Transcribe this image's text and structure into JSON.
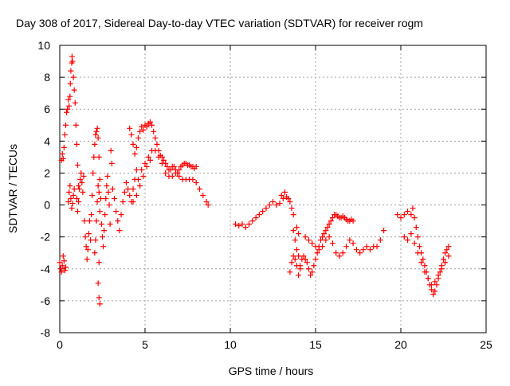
{
  "chart_data": {
    "type": "scatter",
    "title": "Day 308 of 2017, Sidereal Day-to-day VTEC variation (SDTVAR) for receiver rogm",
    "xlabel": "GPS time / hours",
    "ylabel": "SDTVAR / TECUs",
    "xlim": [
      0,
      25
    ],
    "ylim": [
      -8,
      10
    ],
    "xticks": [
      0,
      5,
      10,
      15,
      20,
      25
    ],
    "yticks": [
      -8,
      -6,
      -4,
      -2,
      0,
      2,
      4,
      6,
      8,
      10
    ],
    "grid": true,
    "marker": "+",
    "series": [
      {
        "color": "#ff0000",
        "points": [
          [
            0.0,
            -3.6
          ],
          [
            0.05,
            -4.0
          ],
          [
            0.1,
            -4.2
          ],
          [
            0.15,
            -3.8
          ],
          [
            0.2,
            -3.2
          ],
          [
            0.25,
            -3.5
          ],
          [
            0.3,
            -4.1
          ],
          [
            0.35,
            -3.9
          ],
          [
            0.1,
            2.8
          ],
          [
            0.15,
            3.2
          ],
          [
            0.2,
            2.9
          ],
          [
            0.25,
            3.6
          ],
          [
            0.3,
            4.4
          ],
          [
            0.35,
            5.0
          ],
          [
            0.4,
            5.8
          ],
          [
            0.45,
            6.0
          ],
          [
            0.5,
            6.6
          ],
          [
            0.55,
            6.2
          ],
          [
            0.6,
            6.8
          ],
          [
            0.62,
            7.6
          ],
          [
            0.65,
            8.4
          ],
          [
            0.7,
            8.9
          ],
          [
            0.72,
            9.3
          ],
          [
            0.75,
            9.0
          ],
          [
            0.8,
            8.0
          ],
          [
            0.85,
            7.2
          ],
          [
            0.9,
            6.4
          ],
          [
            0.95,
            5.0
          ],
          [
            1.0,
            3.8
          ],
          [
            1.05,
            2.5
          ],
          [
            1.1,
            1.2
          ],
          [
            0.5,
            0.2
          ],
          [
            0.55,
            0.8
          ],
          [
            0.6,
            1.2
          ],
          [
            0.65,
            0.4
          ],
          [
            0.7,
            -0.2
          ],
          [
            0.75,
            0.1
          ],
          [
            0.8,
            0.6
          ],
          [
            0.85,
            1.0
          ],
          [
            1.0,
            0.4
          ],
          [
            1.05,
            -0.4
          ],
          [
            1.1,
            0.2
          ],
          [
            1.15,
            1.0
          ],
          [
            1.2,
            1.6
          ],
          [
            1.25,
            2.0
          ],
          [
            1.3,
            1.4
          ],
          [
            1.35,
            0.8
          ],
          [
            1.4,
            1.8
          ],
          [
            1.45,
            -1.0
          ],
          [
            1.5,
            -2.0
          ],
          [
            1.55,
            -2.6
          ],
          [
            1.6,
            -3.4
          ],
          [
            1.65,
            -2.8
          ],
          [
            1.7,
            -1.8
          ],
          [
            1.75,
            -1.0
          ],
          [
            1.8,
            -2.2
          ],
          [
            1.85,
            -0.6
          ],
          [
            1.9,
            0.6
          ],
          [
            1.95,
            2.0
          ],
          [
            2.0,
            3.0
          ],
          [
            2.05,
            3.8
          ],
          [
            2.1,
            4.4
          ],
          [
            2.15,
            4.6
          ],
          [
            2.2,
            4.8
          ],
          [
            2.25,
            4.2
          ],
          [
            2.3,
            3.0
          ],
          [
            2.35,
            1.6
          ],
          [
            2.4,
            0.4
          ],
          [
            2.45,
            -1.2
          ],
          [
            2.5,
            -2.0
          ],
          [
            2.05,
            -3.0
          ],
          [
            2.1,
            -2.2
          ],
          [
            2.15,
            -1.0
          ],
          [
            2.2,
            0.2
          ],
          [
            2.25,
            1.2
          ],
          [
            2.3,
            0.8
          ],
          [
            2.35,
            -0.4
          ],
          [
            2.25,
            -4.9
          ],
          [
            2.3,
            -5.8
          ],
          [
            2.35,
            -6.2
          ],
          [
            2.3,
            -3.6
          ],
          [
            2.55,
            -2.6
          ],
          [
            2.6,
            -1.6
          ],
          [
            2.65,
            -0.6
          ],
          [
            2.7,
            0.4
          ],
          [
            2.75,
            1.2
          ],
          [
            2.8,
            1.8
          ],
          [
            2.85,
            0.8
          ],
          [
            2.9,
            0.0
          ],
          [
            2.95,
            -1.2
          ],
          [
            3.0,
            3.4
          ],
          [
            3.05,
            2.6
          ],
          [
            3.1,
            1.0
          ],
          [
            3.2,
            0.4
          ],
          [
            3.3,
            -0.4
          ],
          [
            3.4,
            -1.0
          ],
          [
            3.5,
            -1.6
          ],
          [
            3.6,
            -0.6
          ],
          [
            3.7,
            0.2
          ],
          [
            3.8,
            0.8
          ],
          [
            3.9,
            1.4
          ],
          [
            4.0,
            1.0
          ],
          [
            4.1,
            0.6
          ],
          [
            4.2,
            0.2
          ],
          [
            4.3,
            1.0
          ],
          [
            4.4,
            1.6
          ],
          [
            4.5,
            2.2
          ],
          [
            4.1,
            4.8
          ],
          [
            4.2,
            4.4
          ],
          [
            4.3,
            3.8
          ],
          [
            4.4,
            3.2
          ],
          [
            4.5,
            3.6
          ],
          [
            4.6,
            4.2
          ],
          [
            4.7,
            4.6
          ],
          [
            4.8,
            4.9
          ],
          [
            4.9,
            4.7
          ],
          [
            5.0,
            5.0
          ],
          [
            5.1,
            4.9
          ],
          [
            5.2,
            5.1
          ],
          [
            5.3,
            5.2
          ],
          [
            5.4,
            5.0
          ],
          [
            5.5,
            4.6
          ],
          [
            5.6,
            4.2
          ],
          [
            5.7,
            3.8
          ],
          [
            5.8,
            3.4
          ],
          [
            5.9,
            3.1
          ],
          [
            6.0,
            3.0
          ],
          [
            6.1,
            2.8
          ],
          [
            6.2,
            2.6
          ],
          [
            6.3,
            2.4
          ],
          [
            6.4,
            2.2
          ],
          [
            6.5,
            2.2
          ],
          [
            6.6,
            2.4
          ],
          [
            6.7,
            2.4
          ],
          [
            6.8,
            2.2
          ],
          [
            6.9,
            2.0
          ],
          [
            7.0,
            2.2
          ],
          [
            7.1,
            2.4
          ],
          [
            7.2,
            2.5
          ],
          [
            7.3,
            2.6
          ],
          [
            7.4,
            2.6
          ],
          [
            7.5,
            2.5
          ],
          [
            7.6,
            2.5
          ],
          [
            7.7,
            2.4
          ],
          [
            7.8,
            2.4
          ],
          [
            7.9,
            2.3
          ],
          [
            8.0,
            2.4
          ],
          [
            4.6,
            1.6
          ],
          [
            4.8,
            2.2
          ],
          [
            5.0,
            2.6
          ],
          [
            5.2,
            3.0
          ],
          [
            5.4,
            3.4
          ],
          [
            5.6,
            3.4
          ],
          [
            5.8,
            3.0
          ],
          [
            6.0,
            2.6
          ],
          [
            6.2,
            2.0
          ],
          [
            6.4,
            1.8
          ],
          [
            6.6,
            1.8
          ],
          [
            6.8,
            2.0
          ],
          [
            7.0,
            1.8
          ],
          [
            7.2,
            1.6
          ],
          [
            7.4,
            1.6
          ],
          [
            7.6,
            1.6
          ],
          [
            7.8,
            1.6
          ],
          [
            8.0,
            1.4
          ],
          [
            8.2,
            1.0
          ],
          [
            8.4,
            0.6
          ],
          [
            8.6,
            0.2
          ],
          [
            8.7,
            0.0
          ],
          [
            4.3,
            0.2
          ],
          [
            4.5,
            0.6
          ],
          [
            4.7,
            1.2
          ],
          [
            4.9,
            1.8
          ],
          [
            5.1,
            2.4
          ],
          [
            5.3,
            2.8
          ],
          [
            10.3,
            -1.2
          ],
          [
            10.5,
            -1.3
          ],
          [
            10.7,
            -1.2
          ],
          [
            10.9,
            -1.4
          ],
          [
            11.1,
            -1.2
          ],
          [
            11.3,
            -1.0
          ],
          [
            11.5,
            -0.8
          ],
          [
            11.7,
            -0.6
          ],
          [
            11.9,
            -0.4
          ],
          [
            12.1,
            -0.2
          ],
          [
            12.3,
            0.0
          ],
          [
            12.5,
            0.2
          ],
          [
            12.7,
            0.0
          ],
          [
            12.9,
            0.1
          ],
          [
            13.1,
            0.4
          ],
          [
            13.3,
            0.5
          ],
          [
            13.5,
            0.2
          ],
          [
            13.7,
            -0.6
          ],
          [
            13.9,
            -1.4
          ],
          [
            14.0,
            -1.8
          ],
          [
            13.0,
            0.6
          ],
          [
            13.2,
            0.8
          ],
          [
            13.4,
            0.4
          ],
          [
            13.6,
            -0.2
          ],
          [
            13.7,
            -1.6
          ],
          [
            13.8,
            -2.2
          ],
          [
            13.9,
            -2.8
          ],
          [
            14.0,
            -3.2
          ],
          [
            14.1,
            -3.8
          ],
          [
            14.2,
            -3.4
          ],
          [
            14.3,
            -3.2
          ],
          [
            14.4,
            -3.4
          ],
          [
            14.5,
            -3.6
          ],
          [
            14.6,
            -4.0
          ],
          [
            14.7,
            -4.4
          ],
          [
            14.8,
            -4.2
          ],
          [
            14.9,
            -3.8
          ],
          [
            15.0,
            -3.4
          ],
          [
            15.1,
            -3.0
          ],
          [
            15.2,
            -2.6
          ],
          [
            15.3,
            -2.2
          ],
          [
            15.4,
            -2.0
          ],
          [
            15.5,
            -1.8
          ],
          [
            15.6,
            -1.6
          ],
          [
            15.7,
            -1.4
          ],
          [
            15.8,
            -1.2
          ],
          [
            15.9,
            -1.0
          ],
          [
            16.0,
            -0.8
          ],
          [
            16.1,
            -0.6
          ],
          [
            16.2,
            -0.6
          ],
          [
            16.3,
            -0.7
          ],
          [
            16.4,
            -0.8
          ],
          [
            16.5,
            -0.8
          ],
          [
            16.6,
            -0.7
          ],
          [
            16.7,
            -0.8
          ],
          [
            16.8,
            -0.9
          ],
          [
            16.9,
            -1.0
          ],
          [
            17.0,
            -1.0
          ],
          [
            17.1,
            -0.9
          ],
          [
            17.2,
            -1.0
          ],
          [
            13.5,
            -4.2
          ],
          [
            13.6,
            -3.6
          ],
          [
            13.7,
            -3.2
          ],
          [
            13.8,
            -3.4
          ],
          [
            13.9,
            -3.8
          ],
          [
            14.0,
            -4.4
          ],
          [
            14.1,
            -4.0
          ],
          [
            14.4,
            -2.0
          ],
          [
            14.6,
            -2.2
          ],
          [
            14.8,
            -2.4
          ],
          [
            15.0,
            -2.6
          ],
          [
            15.2,
            -2.8
          ],
          [
            15.4,
            -2.6
          ],
          [
            15.6,
            -2.2
          ],
          [
            15.8,
            -2.0
          ],
          [
            16.0,
            -2.4
          ],
          [
            16.2,
            -3.0
          ],
          [
            16.4,
            -3.2
          ],
          [
            16.6,
            -3.0
          ],
          [
            16.8,
            -2.6
          ],
          [
            17.0,
            -2.2
          ],
          [
            17.2,
            -2.4
          ],
          [
            17.4,
            -2.8
          ],
          [
            17.6,
            -3.0
          ],
          [
            17.8,
            -2.8
          ],
          [
            18.0,
            -2.6
          ],
          [
            18.2,
            -2.8
          ],
          [
            18.4,
            -2.6
          ],
          [
            18.6,
            -2.6
          ],
          [
            18.8,
            -2.2
          ],
          [
            19.0,
            -1.6
          ],
          [
            19.8,
            -0.6
          ],
          [
            20.0,
            -0.8
          ],
          [
            20.2,
            -0.6
          ],
          [
            20.4,
            -0.4
          ],
          [
            20.6,
            -0.6
          ],
          [
            20.7,
            -0.2
          ],
          [
            20.8,
            -0.8
          ],
          [
            20.9,
            -1.4
          ],
          [
            21.0,
            -2.0
          ],
          [
            21.1,
            -2.6
          ],
          [
            21.2,
            -3.0
          ],
          [
            21.3,
            -3.4
          ],
          [
            21.4,
            -3.8
          ],
          [
            21.5,
            -4.2
          ],
          [
            21.6,
            -4.6
          ],
          [
            21.7,
            -5.0
          ],
          [
            21.8,
            -5.3
          ],
          [
            21.9,
            -5.6
          ],
          [
            22.0,
            -5.4
          ],
          [
            22.1,
            -5.0
          ],
          [
            22.2,
            -4.6
          ],
          [
            22.3,
            -4.2
          ],
          [
            22.4,
            -3.8
          ],
          [
            22.5,
            -3.4
          ],
          [
            22.6,
            -3.0
          ],
          [
            22.7,
            -2.8
          ],
          [
            22.8,
            -2.6
          ],
          [
            20.2,
            -2.0
          ],
          [
            20.4,
            -2.2
          ],
          [
            20.6,
            -1.8
          ],
          [
            20.8,
            -2.4
          ],
          [
            21.0,
            -3.0
          ],
          [
            21.2,
            -3.6
          ],
          [
            21.4,
            -4.2
          ],
          [
            21.6,
            -4.6
          ],
          [
            21.8,
            -5.0
          ],
          [
            22.0,
            -4.8
          ],
          [
            22.2,
            -4.4
          ],
          [
            22.4,
            -4.0
          ],
          [
            22.6,
            -3.6
          ],
          [
            22.8,
            -3.2
          ]
        ]
      }
    ]
  }
}
